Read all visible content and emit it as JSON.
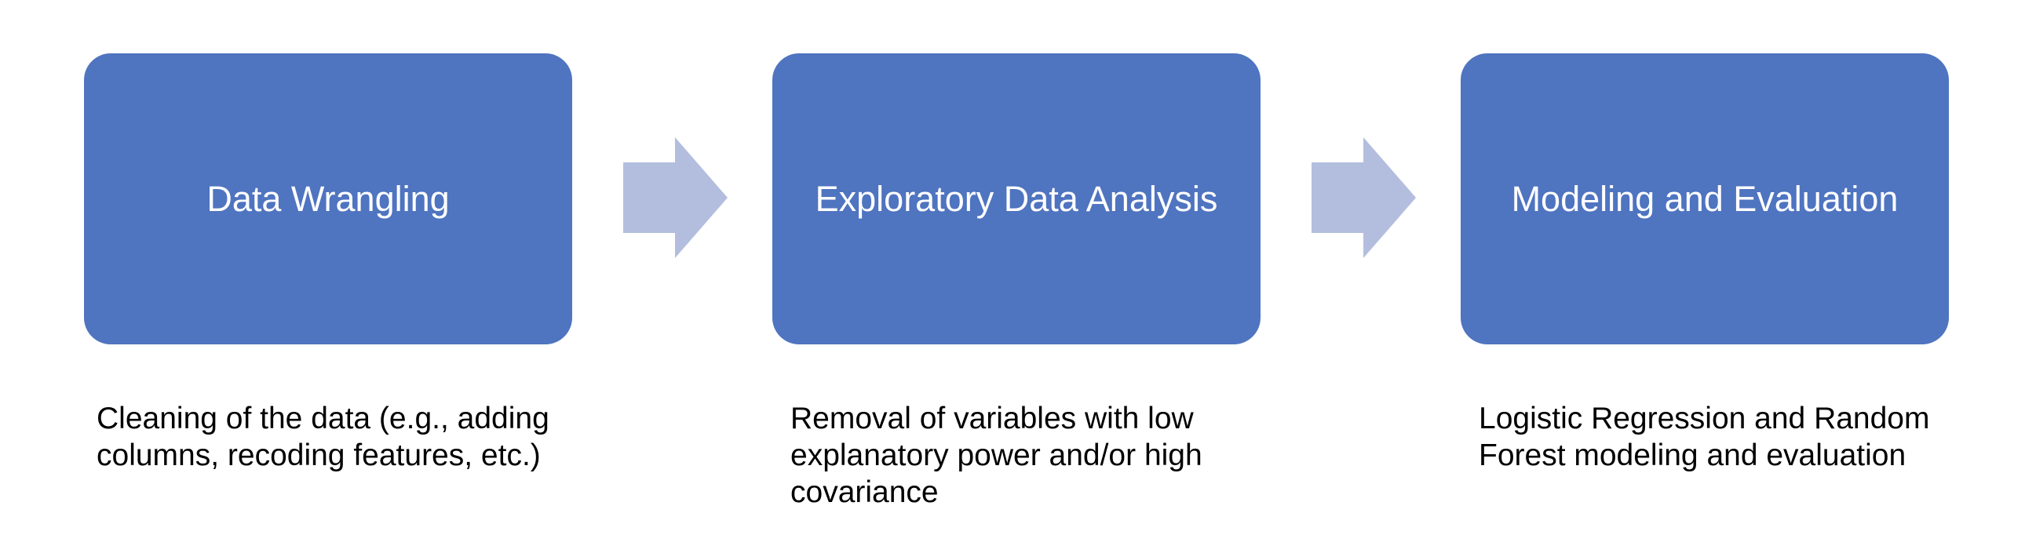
{
  "stages": [
    {
      "title": "Data Wrangling",
      "description_lines": [
        "Cleaning of the data (e.g., adding",
        "columns, recoding features, etc.)"
      ]
    },
    {
      "title": "Exploratory Data Analysis",
      "description_lines": [
        "Removal of variables with low",
        "explanatory power and/or high",
        "covariance"
      ]
    },
    {
      "title": "Modeling and Evaluation",
      "description_lines": [
        "Logistic Regression and Random",
        "Forest modeling and evaluation"
      ]
    }
  ],
  "colors": {
    "box_fill": "#4F74C0",
    "arrow_fill": "#B3BEDF",
    "box_text": "#FFFFFF",
    "description_text": "#000000"
  }
}
